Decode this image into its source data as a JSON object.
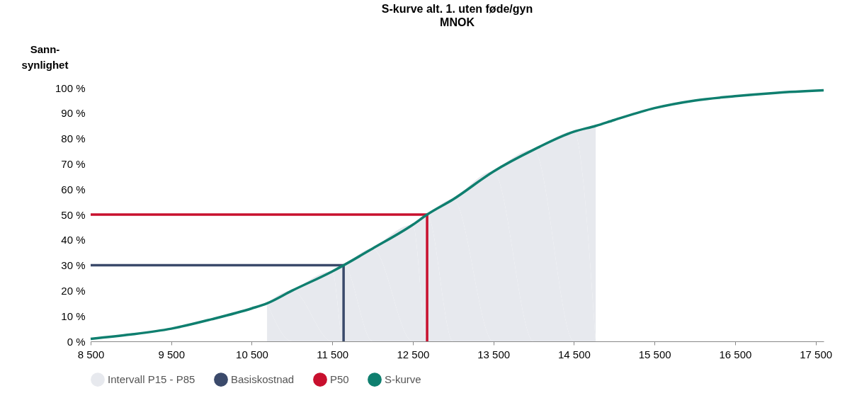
{
  "chart_data": {
    "type": "line",
    "title": "S-kurve alt. 1. uten føde/gyn",
    "subtitle": "MNOK",
    "ylabel": "Sann-\nsynlighet",
    "xlim": [
      8500,
      17600
    ],
    "ylim": [
      0,
      100
    ],
    "xticks": [
      {
        "value": 8500,
        "label": "8 500"
      },
      {
        "value": 9500,
        "label": "9 500"
      },
      {
        "value": 10500,
        "label": "10 500"
      },
      {
        "value": 11500,
        "label": "11 500"
      },
      {
        "value": 12500,
        "label": "12 500"
      },
      {
        "value": 13500,
        "label": "13 500"
      },
      {
        "value": 14500,
        "label": "14 500"
      },
      {
        "value": 15500,
        "label": "15 500"
      },
      {
        "value": 16500,
        "label": "16 500"
      },
      {
        "value": 17500,
        "label": "17 500"
      }
    ],
    "yticks": [
      {
        "value": 0,
        "label": "0 %"
      },
      {
        "value": 10,
        "label": "10 %"
      },
      {
        "value": 20,
        "label": "20 %"
      },
      {
        "value": 30,
        "label": "30 %"
      },
      {
        "value": 40,
        "label": "40 %"
      },
      {
        "value": 50,
        "label": "50 %"
      },
      {
        "value": 60,
        "label": "60 %"
      },
      {
        "value": 70,
        "label": "70 %"
      },
      {
        "value": 80,
        "label": "80 %"
      },
      {
        "value": 90,
        "label": "90 %"
      },
      {
        "value": 100,
        "label": "100 %"
      }
    ],
    "legend": "bottom",
    "series": [
      {
        "name": "Intervall P15 - P85",
        "type": "area",
        "color": "#e7e9ee",
        "x": [
          10690,
          11000,
          11500,
          11640,
          12000,
          12500,
          12677,
          13000,
          13500,
          14000,
          14500,
          14770
        ],
        "values": [
          15,
          20,
          27.6,
          30,
          36.6,
          46,
          50,
          56,
          67,
          75.6,
          82.7,
          85
        ]
      },
      {
        "name": "Basiskostnad",
        "color": "#3b4a6b",
        "x": [
          8500,
          11640,
          11640
        ],
        "values": [
          30,
          30,
          0
        ]
      },
      {
        "name": "P50",
        "color": "#c8102e",
        "x": [
          8500,
          12677,
          12677
        ],
        "values": [
          50,
          50,
          0
        ]
      },
      {
        "name": "S-kurve",
        "color": "#0f7f6f",
        "x": [
          8500,
          9000,
          9500,
          10000,
          10500,
          10690,
          11000,
          11500,
          11640,
          12000,
          12500,
          12677,
          13000,
          13500,
          14000,
          14500,
          14770,
          15000,
          15500,
          16000,
          16500,
          17000,
          17600
        ],
        "values": [
          1,
          2.7,
          5,
          8.7,
          13,
          15,
          20,
          27.6,
          30,
          36.6,
          46,
          50,
          56,
          67,
          75.6,
          82.7,
          85,
          87.3,
          92,
          95,
          96.7,
          98,
          99
        ]
      }
    ]
  }
}
